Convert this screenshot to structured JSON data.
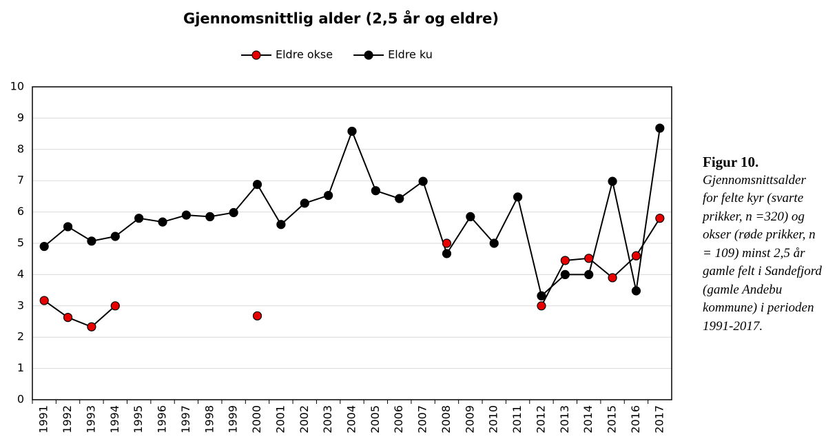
{
  "chart_data": {
    "type": "line",
    "title": "Gjennomsnittlig alder (2,5 år og eldre)",
    "categories": [
      "1991",
      "1992",
      "1993",
      "1994",
      "1995",
      "1996",
      "1997",
      "1998",
      "1999",
      "2000",
      "2001",
      "2002",
      "2003",
      "2004",
      "2005",
      "2006",
      "2007",
      "2008",
      "2009",
      "2010",
      "2011",
      "2012",
      "2013",
      "2014",
      "2015",
      "2016",
      "2017"
    ],
    "series": [
      {
        "name": "Eldre okse",
        "color": "#e60000",
        "values": [
          3.17,
          2.63,
          2.33,
          3.0,
          null,
          null,
          null,
          null,
          null,
          2.68,
          null,
          null,
          null,
          null,
          null,
          null,
          null,
          5.0,
          null,
          null,
          null,
          3.0,
          4.45,
          4.52,
          3.9,
          4.6,
          5.8
        ]
      },
      {
        "name": "Eldre ku",
        "color": "#000000",
        "values": [
          4.9,
          5.53,
          5.07,
          5.22,
          5.8,
          5.68,
          5.9,
          5.85,
          5.98,
          6.88,
          5.6,
          6.28,
          6.53,
          8.58,
          6.68,
          6.43,
          6.98,
          4.67,
          5.85,
          5.0,
          6.48,
          3.32,
          4.0,
          4.0,
          6.98,
          3.48,
          8.68
        ]
      }
    ],
    "line_color": "#000000",
    "ylim": [
      0,
      10
    ],
    "yticks": [
      0,
      1,
      2,
      3,
      4,
      5,
      6,
      7,
      8,
      9,
      10
    ],
    "grid": true,
    "legend": "top"
  },
  "caption": {
    "heading": "Figur 10.",
    "text": "Gjennomsnittsalder for felte kyr (svarte prikker, n =320) og okser (røde prikker, n = 109) minst 2,5 år gamle felt i Sandefjord (gamle Andebu kommune) i perioden 1991-2017."
  }
}
